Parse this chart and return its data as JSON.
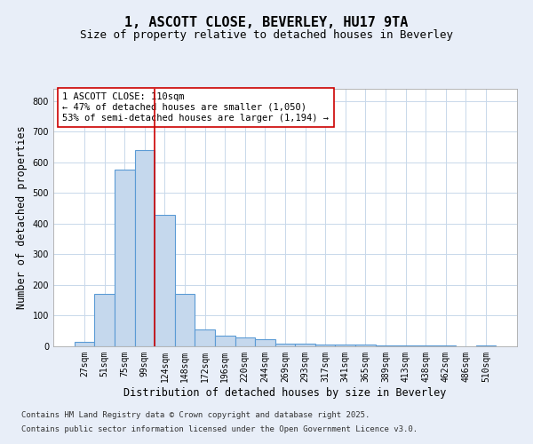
{
  "title": "1, ASCOTT CLOSE, BEVERLEY, HU17 9TA",
  "subtitle": "Size of property relative to detached houses in Beverley",
  "xlabel": "Distribution of detached houses by size in Beverley",
  "ylabel": "Number of detached properties",
  "footnote1": "Contains HM Land Registry data © Crown copyright and database right 2025.",
  "footnote2": "Contains public sector information licensed under the Open Government Licence v3.0.",
  "bar_labels": [
    "27sqm",
    "51sqm",
    "75sqm",
    "99sqm",
    "124sqm",
    "148sqm",
    "172sqm",
    "196sqm",
    "220sqm",
    "244sqm",
    "269sqm",
    "293sqm",
    "317sqm",
    "341sqm",
    "365sqm",
    "389sqm",
    "413sqm",
    "438sqm",
    "462sqm",
    "486sqm",
    "510sqm"
  ],
  "bar_values": [
    15,
    170,
    575,
    640,
    430,
    170,
    55,
    35,
    30,
    22,
    10,
    10,
    5,
    5,
    5,
    4,
    3,
    2,
    2,
    0,
    3
  ],
  "bar_color": "#c5d8ed",
  "bar_edge_color": "#5b9bd5",
  "bar_edge_width": 0.8,
  "annotation_line_color": "#cc0000",
  "annotation_box_text": "1 ASCOTT CLOSE: 110sqm\n← 47% of detached houses are smaller (1,050)\n53% of semi-detached houses are larger (1,194) →",
  "ylim": [
    0,
    840
  ],
  "yticks": [
    0,
    100,
    200,
    300,
    400,
    500,
    600,
    700,
    800
  ],
  "bg_color": "#e8eef8",
  "plot_bg_color": "#ffffff",
  "grid_color": "#c8d8ea",
  "title_fontsize": 11,
  "subtitle_fontsize": 9,
  "axis_label_fontsize": 8.5,
  "tick_fontsize": 7,
  "annotation_fontsize": 7.5,
  "footnote_fontsize": 6.5
}
